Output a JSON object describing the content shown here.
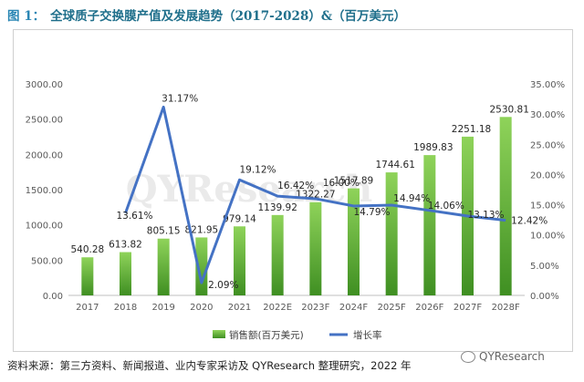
{
  "title_prefix": "图 1：",
  "title_text": "全球质子交换膜产值及发展趋势（2017-2028）&（百万美元）",
  "source_text": "资料来源：第三方资料、新闻报道、业内专家采访及 QYResearch 整理研究，2022 年",
  "brand_text": "QYResearch",
  "watermark_text": "QYResearch",
  "chart_data": {
    "type": "bar",
    "categories": [
      "2017",
      "2018",
      "2019",
      "2020",
      "2021",
      "2022E",
      "2023F",
      "2024F",
      "2025F",
      "2026F",
      "2027F",
      "2028F"
    ],
    "series": [
      {
        "name": "销售额(百万美元)",
        "type": "bar",
        "axis": "left",
        "color": "#5aa832",
        "values": [
          540.28,
          613.82,
          805.15,
          821.95,
          979.14,
          1139.92,
          1322.27,
          1517.89,
          1744.61,
          1989.83,
          2251.18,
          2530.81
        ],
        "labels": [
          "540.28",
          "613.82",
          "805.15",
          "821.95",
          "979.14",
          "1139.92",
          "1322.27",
          "1517.89",
          "1744.61",
          "1989.83",
          "2251.18",
          "2530.81"
        ]
      },
      {
        "name": "增长率",
        "type": "line",
        "axis": "right",
        "color": "#4472c4",
        "values": [
          null,
          13.61,
          31.17,
          2.09,
          19.12,
          16.42,
          16.0,
          14.79,
          14.94,
          14.06,
          13.13,
          12.42
        ],
        "labels": [
          "",
          "13.61%",
          "31.17%",
          "2.09%",
          "19.12%",
          "16.42%",
          "16.00%",
          "14.79%",
          "14.94%",
          "14.06%",
          "13.13%",
          "12.42%"
        ]
      }
    ],
    "y_left": {
      "min": 0,
      "max": 3000,
      "ticks": [
        "0.00",
        "500.00",
        "1000.00",
        "1500.00",
        "2000.00",
        "2500.00",
        "3000.00"
      ]
    },
    "y_right": {
      "min": 0,
      "max": 35,
      "ticks": [
        "0.00%",
        "5.00%",
        "10.00%",
        "15.00%",
        "20.00%",
        "25.00%",
        "30.00%",
        "35.00%"
      ]
    },
    "grid": false,
    "legend_position": "bottom"
  }
}
